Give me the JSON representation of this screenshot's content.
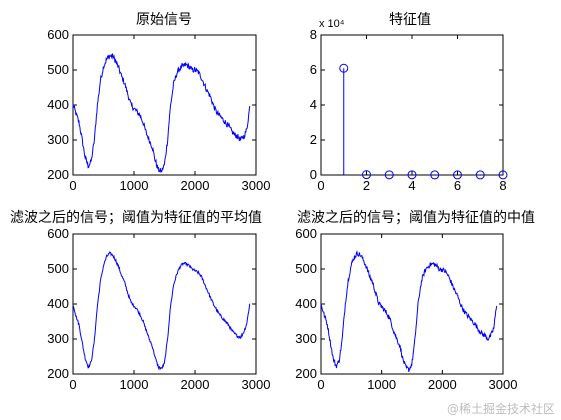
{
  "watermark": "@稀土掘金技术社区",
  "chart_data": [
    {
      "id": "orig",
      "type": "line",
      "title": "原始信号",
      "xlim": [
        0,
        3000
      ],
      "ylim": [
        200,
        600
      ],
      "xticks": [
        0,
        1000,
        2000,
        3000
      ],
      "yticks": [
        200,
        300,
        400,
        500,
        600
      ],
      "grid": false,
      "color": "#0000ff",
      "noise": 8,
      "series": [
        {
          "x": [
            0,
            50,
            100,
            150,
            200,
            250,
            300,
            350,
            400,
            450,
            500,
            550,
            600,
            650,
            700,
            750,
            800,
            850,
            900,
            950,
            1000,
            1050,
            1100,
            1150,
            1200,
            1250,
            1300,
            1350,
            1400,
            1450,
            1500,
            1550,
            1600,
            1650,
            1700,
            1750,
            1800,
            1850,
            1900,
            1950,
            2000,
            2050,
            2100,
            2150,
            2200,
            2250,
            2300,
            2350,
            2400,
            2450,
            2500,
            2550,
            2600,
            2650,
            2700,
            2750,
            2800,
            2850,
            2900
          ],
          "y": [
            400,
            375,
            350,
            300,
            250,
            225,
            240,
            300,
            400,
            470,
            510,
            530,
            540,
            540,
            525,
            505,
            480,
            460,
            430,
            400,
            390,
            380,
            370,
            350,
            320,
            300,
            280,
            240,
            215,
            210,
            230,
            300,
            400,
            460,
            490,
            505,
            510,
            515,
            510,
            500,
            500,
            495,
            480,
            460,
            440,
            425,
            400,
            380,
            370,
            360,
            350,
            340,
            325,
            315,
            310,
            300,
            310,
            330,
            400
          ]
        }
      ]
    },
    {
      "id": "eig",
      "type": "stem",
      "title": "特征值",
      "exponent": "x 10⁴",
      "xlim": [
        0,
        8
      ],
      "ylim": [
        0,
        8
      ],
      "xticks": [
        0,
        2,
        4,
        6,
        8
      ],
      "yticks": [
        0,
        2,
        4,
        6,
        8
      ],
      "grid": false,
      "color": "#0000ff",
      "series": [
        {
          "x": [
            1,
            2,
            3,
            4,
            5,
            6,
            7,
            8
          ],
          "y": [
            6.1,
            0.02,
            0.01,
            0.01,
            0.005,
            0.005,
            0.005,
            0.005
          ]
        }
      ]
    },
    {
      "id": "mean",
      "type": "line",
      "title": "滤波之后的信号；阈值为特征值的平均值",
      "xlim": [
        0,
        3000
      ],
      "ylim": [
        200,
        600
      ],
      "xticks": [
        0,
        1000,
        2000,
        3000
      ],
      "yticks": [
        200,
        300,
        400,
        500,
        600
      ],
      "grid": false,
      "color": "#0000ff",
      "noise": 4,
      "series": [
        {
          "x": [
            0,
            50,
            100,
            150,
            200,
            250,
            300,
            350,
            400,
            450,
            500,
            550,
            600,
            650,
            700,
            750,
            800,
            850,
            900,
            950,
            1000,
            1050,
            1100,
            1150,
            1200,
            1250,
            1300,
            1350,
            1400,
            1450,
            1500,
            1550,
            1600,
            1650,
            1700,
            1750,
            1800,
            1850,
            1900,
            1950,
            2000,
            2050,
            2100,
            2150,
            2200,
            2250,
            2300,
            2350,
            2400,
            2450,
            2500,
            2550,
            2600,
            2650,
            2700,
            2750,
            2800,
            2850,
            2900
          ],
          "y": [
            400,
            365,
            340,
            290,
            245,
            220,
            235,
            295,
            395,
            465,
            510,
            535,
            545,
            540,
            525,
            505,
            480,
            460,
            430,
            405,
            395,
            385,
            370,
            350,
            325,
            300,
            280,
            245,
            220,
            215,
            230,
            300,
            395,
            455,
            485,
            505,
            515,
            515,
            510,
            500,
            495,
            490,
            480,
            460,
            440,
            420,
            400,
            385,
            370,
            360,
            350,
            340,
            325,
            315,
            308,
            305,
            320,
            345,
            405
          ]
        }
      ]
    },
    {
      "id": "median",
      "type": "line",
      "title": "滤波之后的信号；阈值为特征值的中值",
      "xlim": [
        0,
        3000
      ],
      "ylim": [
        200,
        600
      ],
      "xticks": [
        0,
        1000,
        2000,
        3000
      ],
      "yticks": [
        200,
        300,
        400,
        500,
        600
      ],
      "grid": false,
      "color": "#0000ff",
      "noise": 7,
      "series": [
        {
          "x": [
            0,
            50,
            100,
            150,
            200,
            250,
            300,
            350,
            400,
            450,
            500,
            550,
            600,
            650,
            700,
            750,
            800,
            850,
            900,
            950,
            1000,
            1050,
            1100,
            1150,
            1200,
            1250,
            1300,
            1350,
            1400,
            1450,
            1500,
            1550,
            1600,
            1650,
            1700,
            1750,
            1800,
            1850,
            1900,
            1950,
            2000,
            2050,
            2100,
            2150,
            2200,
            2250,
            2300,
            2350,
            2400,
            2450,
            2500,
            2550,
            2600,
            2650,
            2700,
            2750,
            2800,
            2850,
            2900
          ],
          "y": [
            400,
            370,
            345,
            295,
            245,
            222,
            238,
            300,
            400,
            470,
            512,
            535,
            545,
            540,
            525,
            505,
            480,
            462,
            432,
            402,
            392,
            382,
            370,
            350,
            322,
            300,
            280,
            242,
            218,
            212,
            230,
            300,
            400,
            460,
            490,
            505,
            512,
            515,
            510,
            500,
            498,
            493,
            480,
            460,
            440,
            423,
            400,
            382,
            370,
            360,
            350,
            340,
            326,
            316,
            310,
            300,
            310,
            332,
            405
          ]
        }
      ]
    }
  ]
}
